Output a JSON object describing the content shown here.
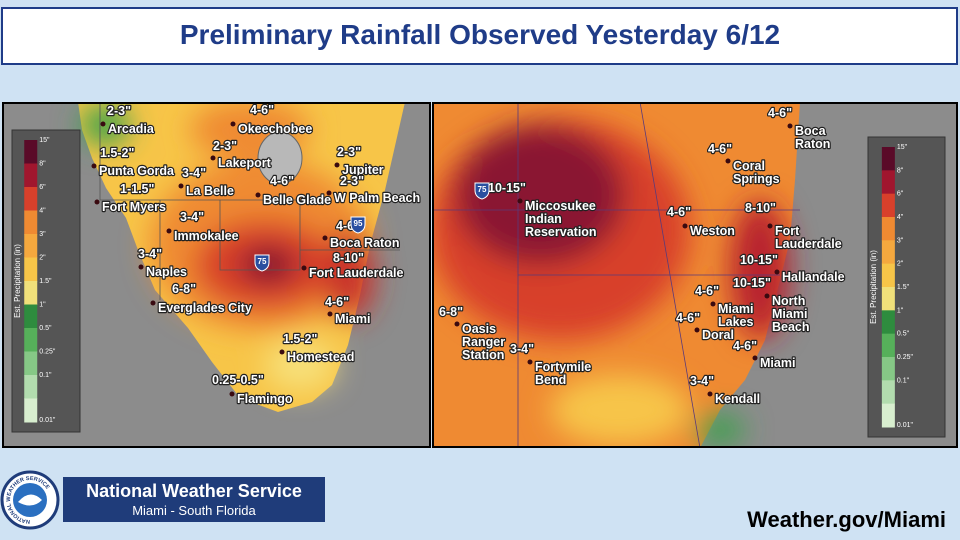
{
  "header": {
    "title": "Preliminary Rainfall Observed Yesterday 6/12"
  },
  "left_map": {
    "labels": [
      {
        "amount": "2-3\"",
        "place": [
          "Arcadia"
        ]
      },
      {
        "amount": "1.5-2\"",
        "place": [
          "Punta Gorda"
        ]
      },
      {
        "amount": "3-4\"",
        "place": [
          "La Belle"
        ]
      },
      {
        "amount": "1-1.5\"",
        "place": [
          "Fort Myers"
        ]
      },
      {
        "amount": "3-4\"",
        "place": [
          "Immokalee"
        ]
      },
      {
        "amount": "3-4\"",
        "place": [
          "Naples"
        ]
      },
      {
        "amount": "6-8\"",
        "place": [
          "Everglades City"
        ]
      },
      {
        "amount": "2-3\"",
        "place": [
          "Lakeport"
        ]
      },
      {
        "amount": "4-6\"",
        "place": [
          "Okeechobee"
        ]
      },
      {
        "amount": "2-3\"",
        "place": [
          "Jupiter"
        ]
      },
      {
        "amount": "4-6\"",
        "place": [
          "Belle Glade"
        ]
      },
      {
        "amount": "2-3\"",
        "place": [
          "W Palm Beach"
        ]
      },
      {
        "amount": "4-6\"",
        "place": [
          "Boca Raton"
        ]
      },
      {
        "amount": "8-10\"",
        "place": [
          "Fort Lauderdale"
        ]
      },
      {
        "amount": "4-6\"",
        "place": [
          "Miami"
        ]
      },
      {
        "amount": "1.5-2\"",
        "place": [
          "Homestead"
        ]
      },
      {
        "amount": "0.25-0.5\"",
        "place": [
          "Flamingo"
        ]
      }
    ],
    "shields": [
      "75",
      "95"
    ]
  },
  "right_map": {
    "labels": [
      {
        "amount": "4-6\"",
        "place": [
          "Boca",
          "Raton"
        ]
      },
      {
        "amount": "4-6\"",
        "place": [
          "Coral",
          "Springs"
        ]
      },
      {
        "amount": "10-15\"",
        "place": [
          "Miccosukee",
          "Indian",
          "Reservation"
        ]
      },
      {
        "amount": "4-6\"",
        "place": [
          "Weston"
        ]
      },
      {
        "amount": "8-10\"",
        "place": [
          "Fort",
          "Lauderdale"
        ]
      },
      {
        "amount": "10-15\"",
        "place": [
          "Hallandale"
        ]
      },
      {
        "amount": "10-15\"",
        "place": [
          "North",
          "Miami",
          "Beach"
        ]
      },
      {
        "amount": "4-6\"",
        "place": [
          "Miami",
          "Lakes"
        ]
      },
      {
        "amount": "4-6\"",
        "place": [
          "Doral"
        ]
      },
      {
        "amount": "4-6\"",
        "place": [
          "Miami"
        ]
      },
      {
        "amount": "6-8\"",
        "place": [
          "Oasis",
          "Ranger",
          "Station"
        ]
      },
      {
        "amount": "3-4\"",
        "place": [
          "Fortymile",
          "Bend"
        ]
      },
      {
        "amount": "3-4\"",
        "place": [
          "Kendall"
        ]
      }
    ],
    "shields": [
      "75"
    ]
  },
  "legend": {
    "title": "Est. Precipitation (in)",
    "ticks": [
      "15\"",
      "8\"",
      "6\"",
      "4\"",
      "3\"",
      "2\"",
      "1.5\"",
      "1\"",
      "0.5\"",
      "0.25\"",
      "0.1\"",
      "0.01\""
    ]
  },
  "footer": {
    "logo_ring": "NATIONAL WEATHER SERVICE",
    "org": "National Weather Service",
    "office": "Miami - South Florida",
    "url": "Weather.gov/Miami"
  }
}
